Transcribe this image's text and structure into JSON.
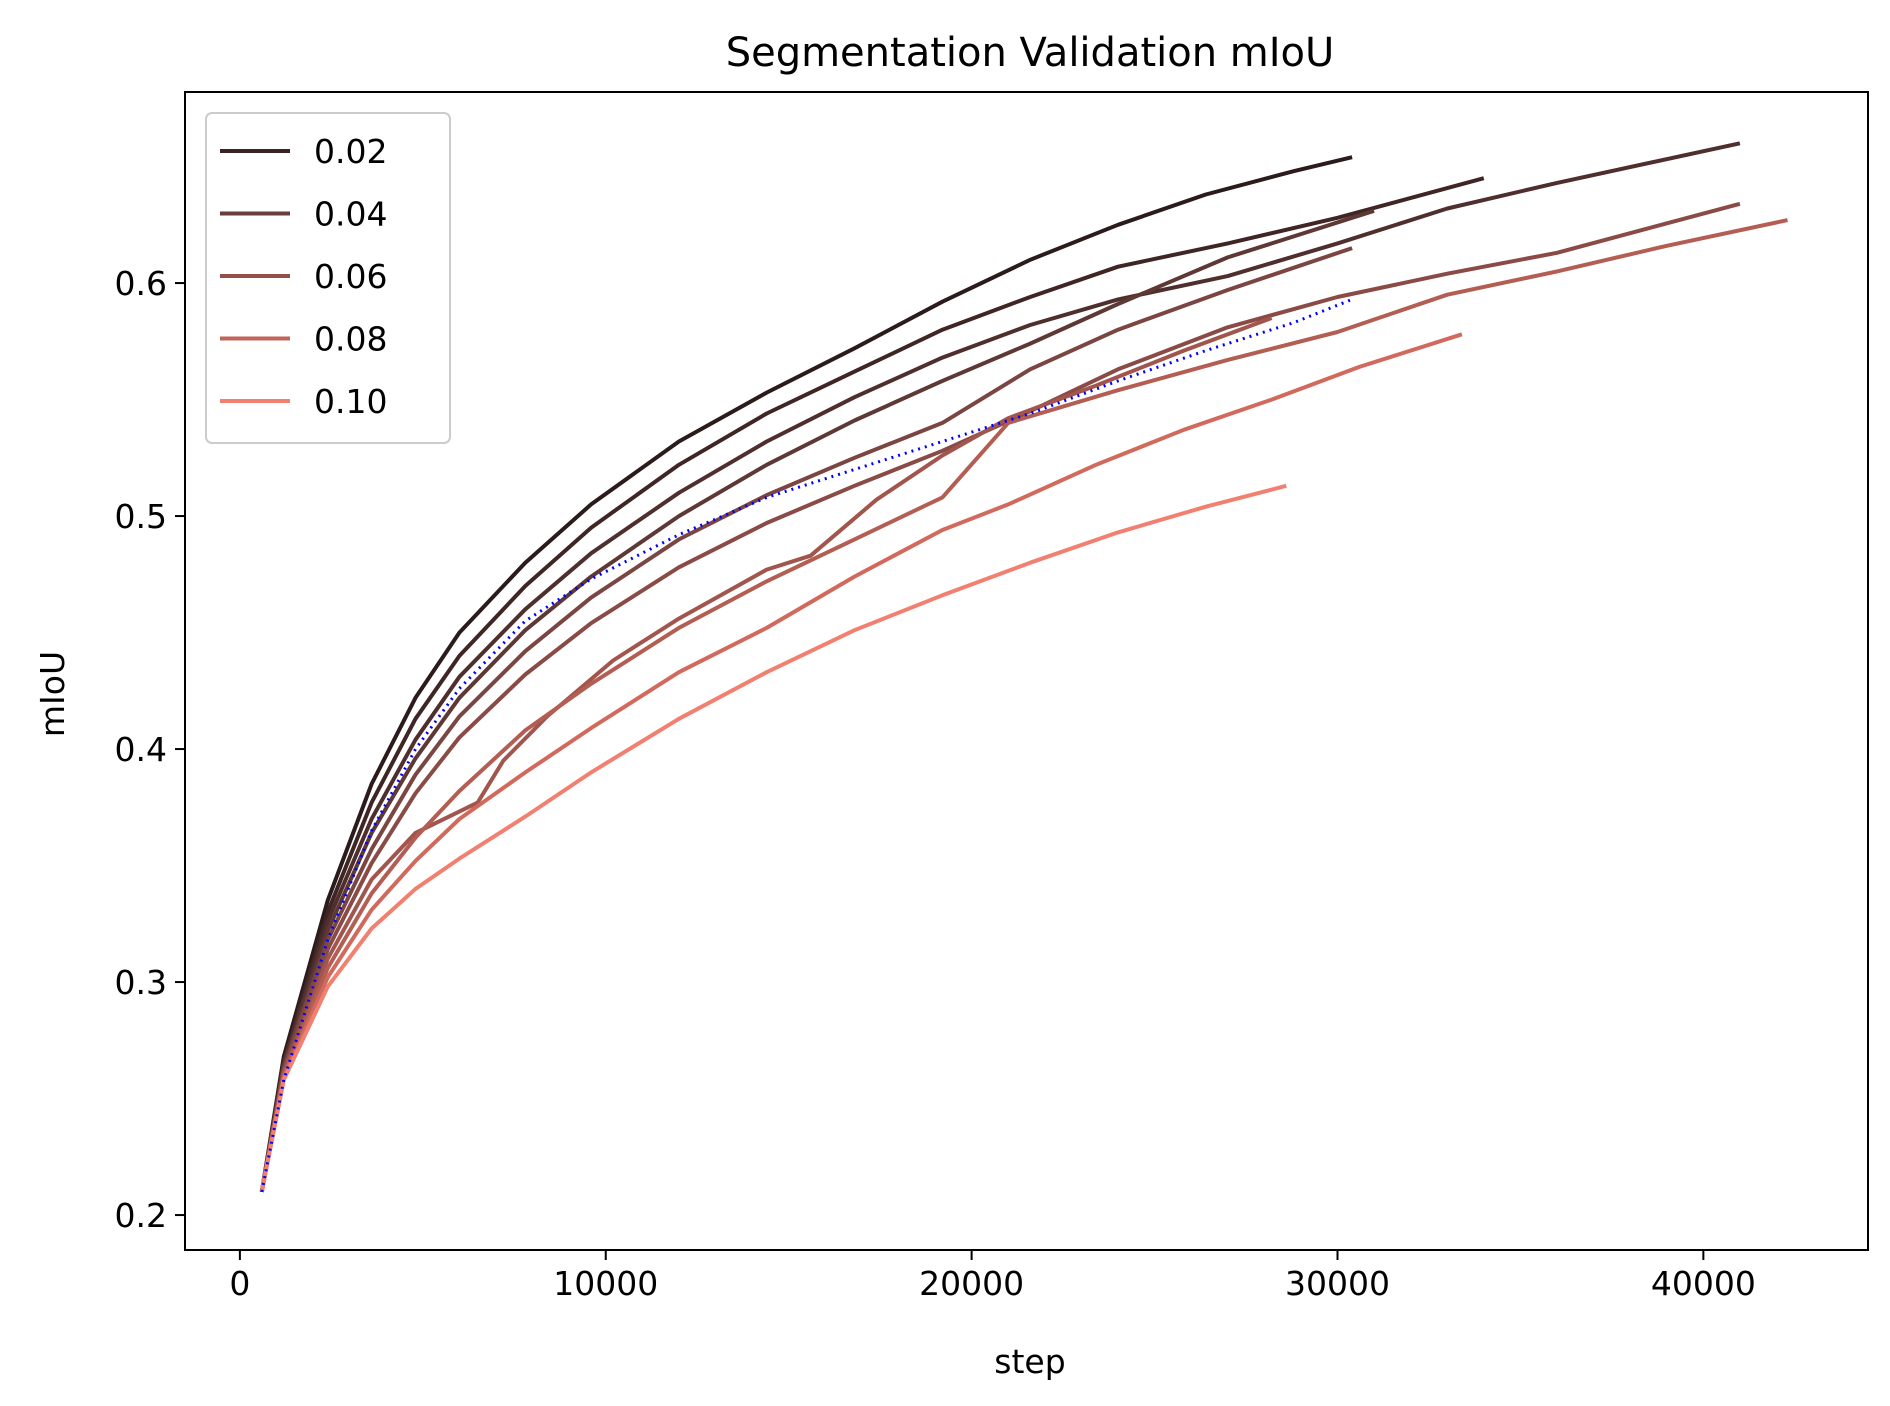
{
  "chart_data": {
    "type": "line",
    "title": "Segmentation Validation mIoU",
    "xlabel": "step",
    "ylabel": "mIoU",
    "xlim": [
      -1500,
      44500
    ],
    "ylim": [
      0.185,
      0.682
    ],
    "xticks": [
      0,
      10000,
      20000,
      30000,
      40000
    ],
    "xtick_labels": [
      "0",
      "10000",
      "20000",
      "30000",
      "40000"
    ],
    "yticks": [
      0.2,
      0.3,
      0.4,
      0.5,
      0.6
    ],
    "ytick_labels": [
      "0.2",
      "0.3",
      "0.4",
      "0.5",
      "0.6"
    ],
    "grid": false,
    "legend_position": "top-left",
    "legend": [
      {
        "label": "0.02",
        "color": "#3a2322"
      },
      {
        "label": "0.04",
        "color": "#6a3d3a"
      },
      {
        "label": "0.06",
        "color": "#93504a"
      },
      {
        "label": "0.08",
        "color": "#c26458"
      },
      {
        "label": "0.10",
        "color": "#f28071"
      }
    ],
    "series": [
      {
        "color": "#2b1b1a",
        "style": "solid",
        "x": [
          600,
          1200,
          2400,
          3600,
          4800,
          6000,
          7800,
          9600,
          12000,
          14400,
          16800,
          19200,
          21600,
          24000,
          26400,
          28800,
          30400
        ],
        "y": [
          0.21,
          0.268,
          0.335,
          0.385,
          0.422,
          0.45,
          0.48,
          0.505,
          0.532,
          0.553,
          0.572,
          0.592,
          0.61,
          0.625,
          0.638,
          0.648,
          0.654
        ]
      },
      {
        "color": "#3f2624",
        "style": "solid",
        "x": [
          600,
          1200,
          2400,
          3600,
          4800,
          6000,
          7800,
          9600,
          12000,
          14400,
          16800,
          19200,
          21600,
          24000,
          27000,
          30000,
          34000
        ],
        "y": [
          0.21,
          0.266,
          0.33,
          0.377,
          0.413,
          0.44,
          0.47,
          0.495,
          0.522,
          0.544,
          0.562,
          0.58,
          0.594,
          0.607,
          0.617,
          0.628,
          0.645
        ]
      },
      {
        "color": "#4f2f2d",
        "style": "solid",
        "x": [
          600,
          1200,
          2400,
          3600,
          4800,
          6000,
          7800,
          9600,
          12000,
          14400,
          16800,
          19200,
          21600,
          24000,
          27000,
          30000,
          33000,
          36000,
          41000
        ],
        "y": [
          0.21,
          0.265,
          0.326,
          0.37,
          0.404,
          0.431,
          0.46,
          0.484,
          0.51,
          0.532,
          0.551,
          0.568,
          0.582,
          0.593,
          0.603,
          0.617,
          0.632,
          0.643,
          0.66
        ]
      },
      {
        "color": "#5e3835",
        "style": "solid",
        "x": [
          600,
          1200,
          2400,
          3600,
          4800,
          6000,
          7800,
          9600,
          12000,
          14400,
          16800,
          19200,
          21600,
          24000,
          27000,
          31000
        ],
        "y": [
          0.21,
          0.264,
          0.322,
          0.364,
          0.396,
          0.422,
          0.451,
          0.474,
          0.5,
          0.522,
          0.541,
          0.558,
          0.574,
          0.591,
          0.611,
          0.631
        ]
      },
      {
        "color": "#7b4542",
        "style": "solid",
        "x": [
          600,
          1200,
          2400,
          3600,
          4800,
          6000,
          7800,
          9600,
          12000,
          14400,
          16800,
          19200,
          21600,
          24000,
          27000,
          30400
        ],
        "y": [
          0.21,
          0.263,
          0.318,
          0.357,
          0.389,
          0.414,
          0.442,
          0.465,
          0.49,
          0.509,
          0.525,
          0.54,
          0.563,
          0.58,
          0.597,
          0.615
        ]
      },
      {
        "color": "#8a4a45",
        "style": "solid",
        "x": [
          600,
          1200,
          2400,
          3600,
          4800,
          6000,
          7800,
          9600,
          12000,
          14400,
          16800,
          19200,
          21600,
          24000,
          27000,
          30000,
          33000,
          36000,
          41000
        ],
        "y": [
          0.21,
          0.262,
          0.314,
          0.351,
          0.381,
          0.405,
          0.432,
          0.454,
          0.478,
          0.497,
          0.513,
          0.528,
          0.545,
          0.563,
          0.581,
          0.594,
          0.604,
          0.613,
          0.634
        ]
      },
      {
        "color": "#a2554c",
        "style": "solid",
        "x": [
          600,
          1200,
          2400,
          3600,
          4800,
          6500,
          7200,
          8400,
          10200,
          12000,
          14400,
          15600,
          17400,
          19200,
          21000,
          23400,
          25800,
          28200
        ],
        "y": [
          0.21,
          0.261,
          0.31,
          0.344,
          0.364,
          0.377,
          0.395,
          0.414,
          0.438,
          0.456,
          0.477,
          0.483,
          0.507,
          0.526,
          0.542,
          0.556,
          0.571,
          0.585
        ]
      },
      {
        "color": "#b45d52",
        "style": "solid",
        "x": [
          600,
          1200,
          2400,
          3600,
          4800,
          6000,
          7800,
          9600,
          12000,
          14400,
          16800,
          19200,
          21000,
          24000,
          27000,
          30000,
          33000,
          36000,
          39000,
          42300
        ],
        "y": [
          0.21,
          0.26,
          0.306,
          0.338,
          0.362,
          0.382,
          0.408,
          0.428,
          0.452,
          0.472,
          0.49,
          0.508,
          0.54,
          0.554,
          0.567,
          0.579,
          0.595,
          0.605,
          0.616,
          0.627
        ]
      },
      {
        "color": "#d2695d",
        "style": "solid",
        "x": [
          600,
          1200,
          2400,
          3600,
          4800,
          6000,
          7800,
          9600,
          12000,
          14400,
          16800,
          19200,
          21000,
          23400,
          25800,
          28200,
          30600,
          33400
        ],
        "y": [
          0.21,
          0.259,
          0.302,
          0.331,
          0.352,
          0.37,
          0.39,
          0.409,
          0.433,
          0.452,
          0.474,
          0.494,
          0.505,
          0.522,
          0.537,
          0.55,
          0.564,
          0.578
        ]
      },
      {
        "color": "#f28071",
        "style": "solid",
        "x": [
          600,
          1200,
          2400,
          3600,
          4800,
          6000,
          7800,
          9600,
          12000,
          14400,
          16800,
          19200,
          21600,
          24000,
          26400,
          28600
        ],
        "y": [
          0.21,
          0.258,
          0.298,
          0.323,
          0.34,
          0.353,
          0.371,
          0.39,
          0.413,
          0.433,
          0.451,
          0.466,
          0.48,
          0.493,
          0.504,
          0.513
        ]
      },
      {
        "color": "#0000ff",
        "style": "dotted",
        "x": [
          600,
          1200,
          2400,
          3600,
          4800,
          6000,
          7800,
          9600,
          12000,
          14400,
          16800,
          19200,
          21600,
          24000,
          26400,
          28800,
          30400
        ],
        "y": [
          0.21,
          0.258,
          0.318,
          0.365,
          0.4,
          0.426,
          0.455,
          0.473,
          0.492,
          0.508,
          0.52,
          0.532,
          0.544,
          0.558,
          0.571,
          0.583,
          0.593
        ]
      }
    ]
  }
}
